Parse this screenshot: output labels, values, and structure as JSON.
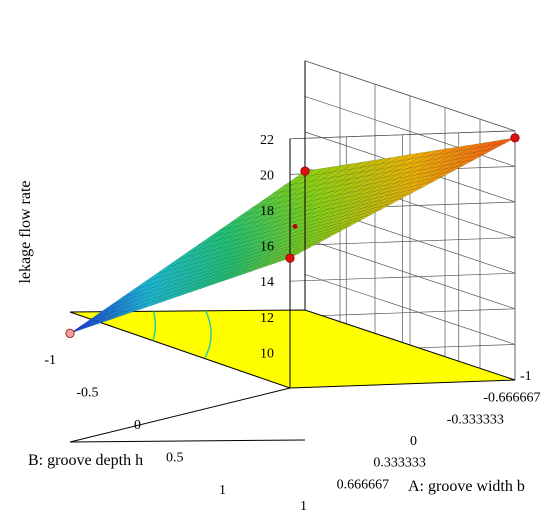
{
  "chart_data": {
    "type": "surface3d",
    "title": "",
    "z_label": "lekage flow rate",
    "x_label": "A: groove width b",
    "y_label": "B: groove depth h",
    "z_ticks": [
      "10",
      "12",
      "14",
      "16",
      "18",
      "20",
      "22"
    ],
    "x_ticks": [
      "-1",
      "-0.666667",
      "-0.333333",
      "0",
      "0.333333",
      "0.666667",
      "1"
    ],
    "y_ticks": [
      "-1",
      "-0.5",
      "0",
      "0.5",
      "1"
    ],
    "z_range": [
      8,
      22
    ],
    "corner_points": [
      {
        "A": -1,
        "B": -1,
        "value": 21.6
      },
      {
        "A": -1,
        "B": 1,
        "value": 15.3
      },
      {
        "A": 1,
        "B": -1,
        "value": 15.8
      },
      {
        "A": 1,
        "B": 1,
        "value": 6.8
      }
    ],
    "center_point": {
      "A": 0,
      "B": 0,
      "value": 14.8
    },
    "floor_color": "#ffff00",
    "contour_color": "#20c8b0",
    "colormap": [
      "#1a2bd6",
      "#1ab8d8",
      "#20c070",
      "#8bd010",
      "#f0b000",
      "#ff5010"
    ]
  }
}
